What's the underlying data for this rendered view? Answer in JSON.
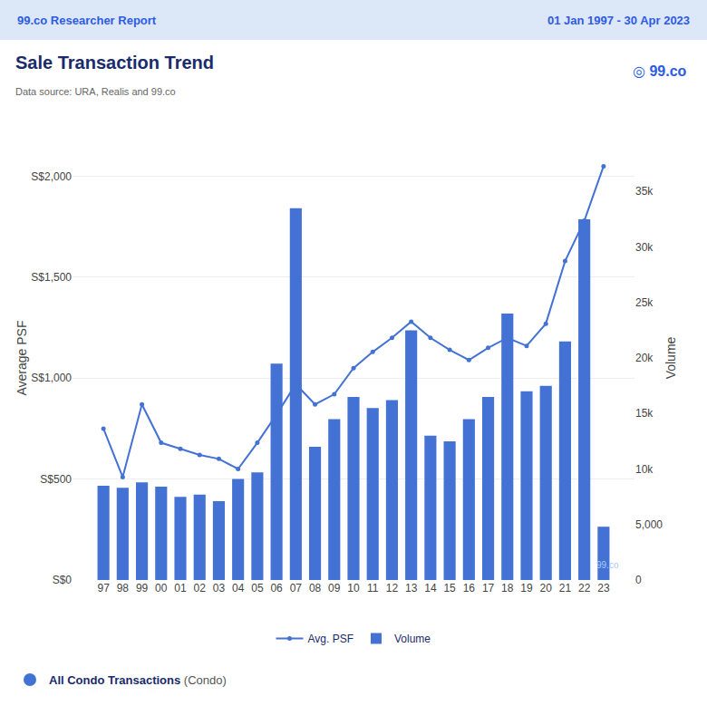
{
  "chart_data": {
    "type": "bar",
    "title": "Sale Transaction Trend",
    "subtitle": "Data source: URA, Realis and 99.co",
    "categories": [
      "97",
      "98",
      "99",
      "00",
      "01",
      "02",
      "03",
      "04",
      "05",
      "06",
      "07",
      "08",
      "09",
      "10",
      "11",
      "12",
      "13",
      "14",
      "15",
      "16",
      "17",
      "18",
      "19",
      "20",
      "21",
      "22",
      "23"
    ],
    "series": [
      {
        "name": "Avg. PSF",
        "type": "line",
        "marker": "circle",
        "color": "#4472d4",
        "values": [
          750,
          510,
          870,
          680,
          650,
          620,
          600,
          550,
          680,
          820,
          970,
          870,
          920,
          1050,
          1130,
          1200,
          1280,
          1200,
          1140,
          1090,
          1150,
          1200,
          1160,
          1270,
          1580,
          1780,
          2050
        ]
      },
      {
        "name": "Volume",
        "type": "bar",
        "axis": "y2",
        "color": "#4472d4",
        "values": [
          8500,
          8300,
          8800,
          8400,
          7500,
          7700,
          7100,
          9100,
          9700,
          19500,
          33500,
          12000,
          14500,
          16500,
          15500,
          16200,
          22500,
          13000,
          12500,
          14500,
          16500,
          24000,
          17000,
          17500,
          21500,
          32500,
          4800
        ]
      }
    ],
    "ylabel": "Average PSF",
    "y2label": "Volume",
    "ylim": [
      0,
      2200
    ],
    "yticks": [
      {
        "value": 0,
        "label": "S$0"
      },
      {
        "value": 500,
        "label": "S$500"
      },
      {
        "value": 1000,
        "label": "S$1,000"
      },
      {
        "value": 1500,
        "label": "S$1,500"
      },
      {
        "value": 2000,
        "label": "S$2,000"
      }
    ],
    "y2lim": [
      0,
      40000
    ],
    "y2ticks": [
      0,
      {
        "value": 5000,
        "label": "5,000"
      },
      {
        "value": 10000,
        "label": "10k"
      },
      {
        "value": 15000,
        "label": "15k"
      },
      {
        "value": 20000,
        "label": "20k"
      },
      {
        "value": 25000,
        "label": "25k"
      },
      {
        "value": 30000,
        "label": "30k"
      },
      {
        "value": 35000,
        "label": "35k"
      }
    ],
    "grid": true,
    "legend": "bottom",
    "annotations": [
      "99.co Researcher Report",
      "01 Jan 1997 - 30 Apr 2023",
      "◎ 99.co",
      "99.co",
      "All Condo Transactions",
      "(Condo)"
    ]
  }
}
